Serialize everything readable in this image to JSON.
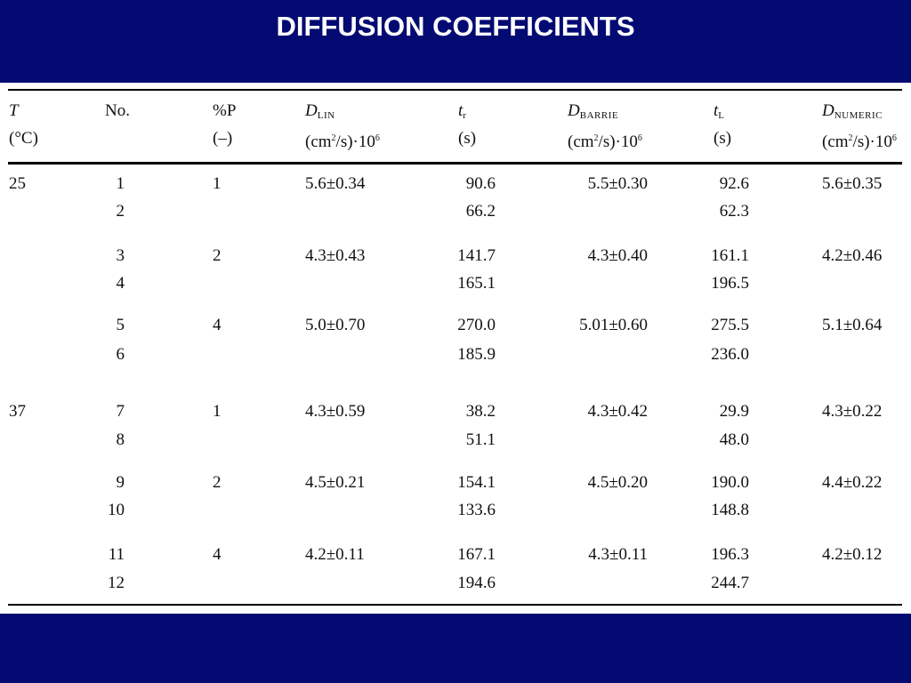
{
  "title": "DIFFUSION COEFFICIENTS",
  "colors": {
    "band": "#030a72",
    "title_text": "#ffffff"
  },
  "header": {
    "T": {
      "line1": "T",
      "line2": "(°C)"
    },
    "no": {
      "line1": "No.",
      "line2": ""
    },
    "pctP": {
      "line1": "%P",
      "line2": "(–)"
    },
    "d_lin": {
      "symbol": "D",
      "subscript": "LIN",
      "unit_pre": "(cm",
      "unit_exp": "2",
      "unit_mid": "/s)·10",
      "unit_exp2": "6"
    },
    "t_r": {
      "symbol": "t",
      "subscript": "r",
      "unit": "(s)"
    },
    "d_barrie": {
      "symbol": "D",
      "subscript": "BARRIE",
      "unit_pre": "(cm",
      "unit_exp": "2",
      "unit_mid": "/s)·10",
      "unit_exp2": "6"
    },
    "t_l": {
      "symbol": "t",
      "subscript": "L",
      "unit": "(s)"
    },
    "d_numeric": {
      "symbol": "D",
      "subscript": "NUMERIC",
      "unit_pre": "(cm",
      "unit_exp": "2",
      "unit_mid": "/s)·10",
      "unit_exp2": "6"
    }
  },
  "rows": [
    {
      "T": "25",
      "no": "1",
      "pctP": "1",
      "d_lin": "5.6±0.34",
      "t_r": "90.6",
      "d_barrie": "5.5±0.30",
      "t_l": "92.6",
      "d_numeric": "5.6±0.35"
    },
    {
      "T": "",
      "no": "2",
      "pctP": "",
      "d_lin": "",
      "t_r": "66.2",
      "d_barrie": "",
      "t_l": "62.3",
      "d_numeric": ""
    },
    {
      "T": "",
      "no": "3",
      "pctP": "2",
      "d_lin": "4.3±0.43",
      "t_r": "141.7",
      "d_barrie": "4.3±0.40",
      "t_l": "161.1",
      "d_numeric": "4.2±0.46"
    },
    {
      "T": "",
      "no": "4",
      "pctP": "",
      "d_lin": "",
      "t_r": "165.1",
      "d_barrie": "",
      "t_l": "196.5",
      "d_numeric": ""
    },
    {
      "T": "",
      "no": "5",
      "pctP": "4",
      "d_lin": "5.0±0.70",
      "t_r": "270.0",
      "d_barrie": "5.01±0.60",
      "t_l": "275.5",
      "d_numeric": "5.1±0.64"
    },
    {
      "T": "",
      "no": "6",
      "pctP": "",
      "d_lin": "",
      "t_r": "185.9",
      "d_barrie": "",
      "t_l": "236.0",
      "d_numeric": ""
    },
    {
      "T": "37",
      "no": "7",
      "pctP": "1",
      "d_lin": "4.3±0.59",
      "t_r": "38.2",
      "d_barrie": "4.3±0.42",
      "t_l": "29.9",
      "d_numeric": "4.3±0.22"
    },
    {
      "T": "",
      "no": "8",
      "pctP": "",
      "d_lin": "",
      "t_r": "51.1",
      "d_barrie": "",
      "t_l": "48.0",
      "d_numeric": ""
    },
    {
      "T": "",
      "no": "9",
      "pctP": "2",
      "d_lin": "4.5±0.21",
      "t_r": "154.1",
      "d_barrie": "4.5±0.20",
      "t_l": "190.0",
      "d_numeric": "4.4±0.22"
    },
    {
      "T": "",
      "no": "10",
      "pctP": "",
      "d_lin": "",
      "t_r": "133.6",
      "d_barrie": "",
      "t_l": "148.8",
      "d_numeric": ""
    },
    {
      "T": "",
      "no": "11",
      "pctP": "4",
      "d_lin": "4.2±0.11",
      "t_r": "167.1",
      "d_barrie": "4.3±0.11",
      "t_l": "196.3",
      "d_numeric": "4.2±0.12"
    },
    {
      "T": "",
      "no": "12",
      "pctP": "",
      "d_lin": "",
      "t_r": "194.6",
      "d_barrie": "",
      "t_l": "244.7",
      "d_numeric": ""
    }
  ]
}
